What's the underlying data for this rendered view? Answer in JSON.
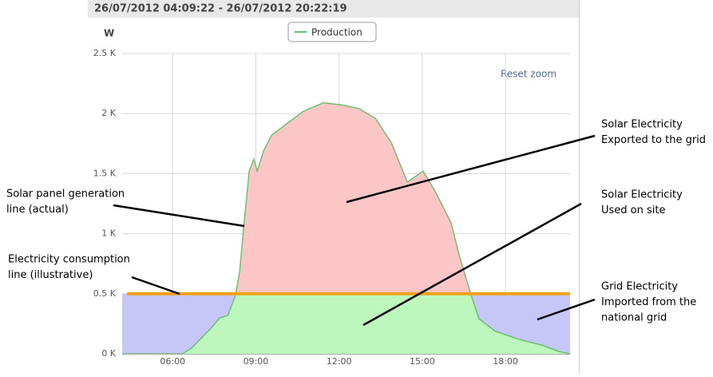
{
  "chart_data": {
    "type": "area-line",
    "header": "26/07/2012 04:09:22 - 26/07/2012 20:22:19",
    "y_axis_label": "W",
    "reset_button": "Reset zoom",
    "xlim": [
      4.18,
      20.33
    ],
    "xticks": [
      {
        "value": 6,
        "label": "06:00"
      },
      {
        "value": 9,
        "label": "09:00"
      },
      {
        "value": 12,
        "label": "12:00"
      },
      {
        "value": 15,
        "label": "15:00"
      },
      {
        "value": 18,
        "label": "18:00"
      }
    ],
    "ylim": [
      0,
      2500
    ],
    "yticks": [
      {
        "value": 0,
        "label": "0 K"
      },
      {
        "value": 500,
        "label": "0.5 K"
      },
      {
        "value": 1000,
        "label": "1 K"
      },
      {
        "value": 1500,
        "label": "1.5 K"
      },
      {
        "value": 2000,
        "label": "2 K"
      },
      {
        "value": 2500,
        "label": "2.5 K"
      }
    ],
    "grid": true,
    "x": [
      4.18,
      6.35,
      6.69,
      7.41,
      7.7,
      7.99,
      8.27,
      8.42,
      8.56,
      8.76,
      8.93,
      9.05,
      9.28,
      9.57,
      10.14,
      10.72,
      11.44,
      12.16,
      12.73,
      13.31,
      13.88,
      14.46,
      15.03,
      15.47,
      16.04,
      16.33,
      16.76,
      17.05,
      17.62,
      18.49,
      19.35,
      19.92,
      20.33
    ],
    "series": [
      {
        "name": "Production",
        "color": "#6cc070",
        "values": [
          0,
          0,
          50,
          220,
          300,
          320,
          490,
          690,
          1050,
          1520,
          1620,
          1520,
          1690,
          1820,
          1920,
          2020,
          2090,
          2070,
          2040,
          1960,
          1760,
          1430,
          1520,
          1350,
          1090,
          820,
          490,
          290,
          190,
          120,
          70,
          20,
          0
        ]
      }
    ],
    "consumption_line": {
      "value": 500,
      "color": "#f5a11c"
    },
    "fills": {
      "imported": "#c6c6f8",
      "used": "#bdf7be",
      "exported": "#fdc6c6"
    },
    "annotations": [
      {
        "lines": [
          "Solar panel generation",
          "line (actual)"
        ]
      },
      {
        "lines": [
          "Electricity consumption",
          "line (illustrative)"
        ]
      },
      {
        "lines": [
          "Solar Electricity",
          "Exported to the grid"
        ]
      },
      {
        "lines": [
          "Solar Electricity",
          "Used on site"
        ]
      },
      {
        "lines": [
          "Grid Electricity",
          "Imported from the",
          "national grid"
        ]
      }
    ]
  }
}
